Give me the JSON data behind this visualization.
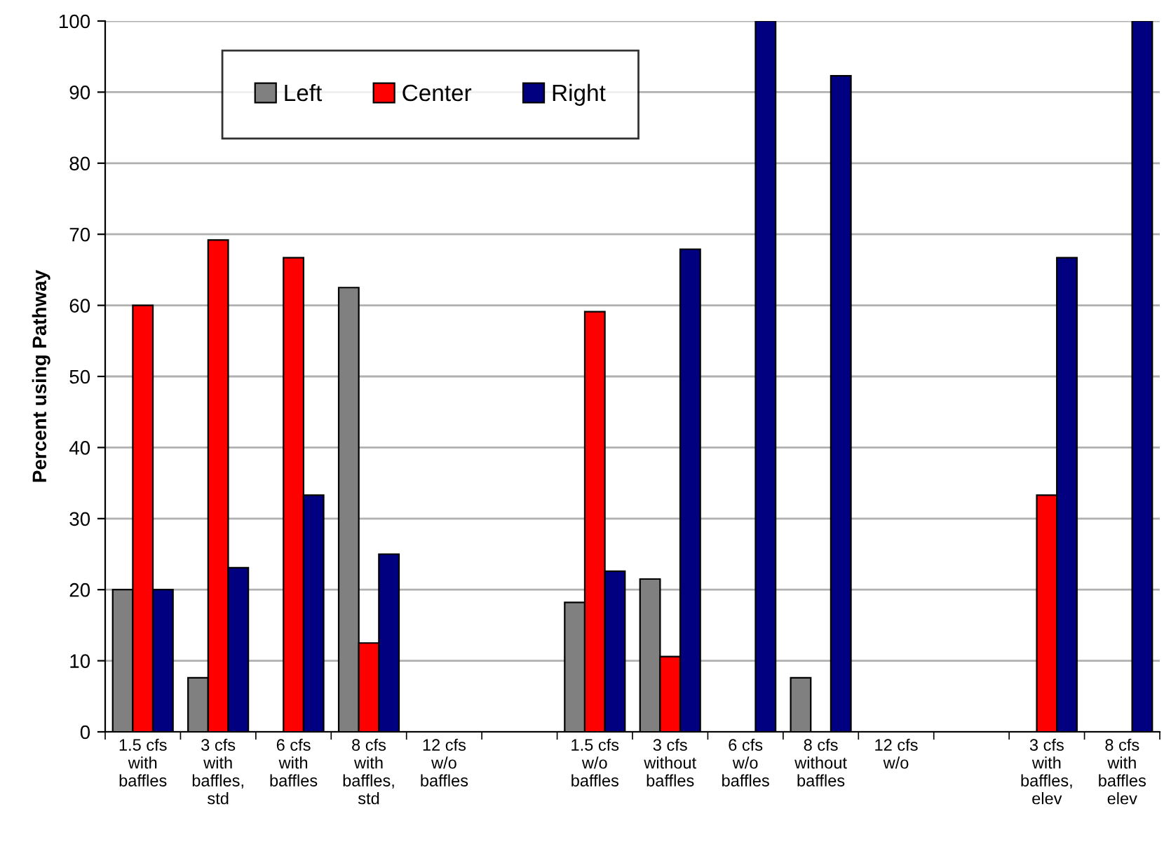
{
  "chart_data": {
    "type": "bar",
    "ylabel": "Percent using Pathway",
    "categories": [
      "1.5 cfs\nwith\nbaffles",
      "3 cfs\nwith\nbaffles,\nstd",
      "6 cfs\nwith\nbaffles",
      "8 cfs\nwith\nbaffles,\nstd",
      "12 cfs\nw/o\nbaffles",
      null,
      "1.5 cfs\nw/o\nbaffles",
      "3 cfs\nwithout\nbaffles",
      "6 cfs\nw/o\nbaffles",
      "8 cfs\nwithout\nbaffles",
      "12 cfs\nw/o",
      null,
      "3 cfs\nwith\nbaffles,\nelev",
      "8 cfs\nwith\nbaffles\nelev"
    ],
    "series": [
      {
        "name": "Left",
        "color": "#808080",
        "values": [
          20,
          7.6,
          null,
          62.5,
          null,
          null,
          18.2,
          21.5,
          null,
          7.6,
          null,
          null,
          null,
          null
        ]
      },
      {
        "name": "Center",
        "color": "#ff0000",
        "values": [
          60,
          69.2,
          66.7,
          12.5,
          null,
          null,
          59.1,
          10.6,
          null,
          null,
          null,
          null,
          33.3,
          null
        ]
      },
      {
        "name": "Right",
        "color": "#000080",
        "values": [
          20,
          23.1,
          33.3,
          25,
          null,
          null,
          22.6,
          67.9,
          100,
          92.3,
          null,
          null,
          66.7,
          100
        ]
      }
    ],
    "ylim": [
      0,
      100
    ],
    "yticks": [
      0,
      10,
      20,
      30,
      40,
      50,
      60,
      70,
      80,
      90,
      100
    ],
    "grid": "y",
    "legend": "top left"
  }
}
